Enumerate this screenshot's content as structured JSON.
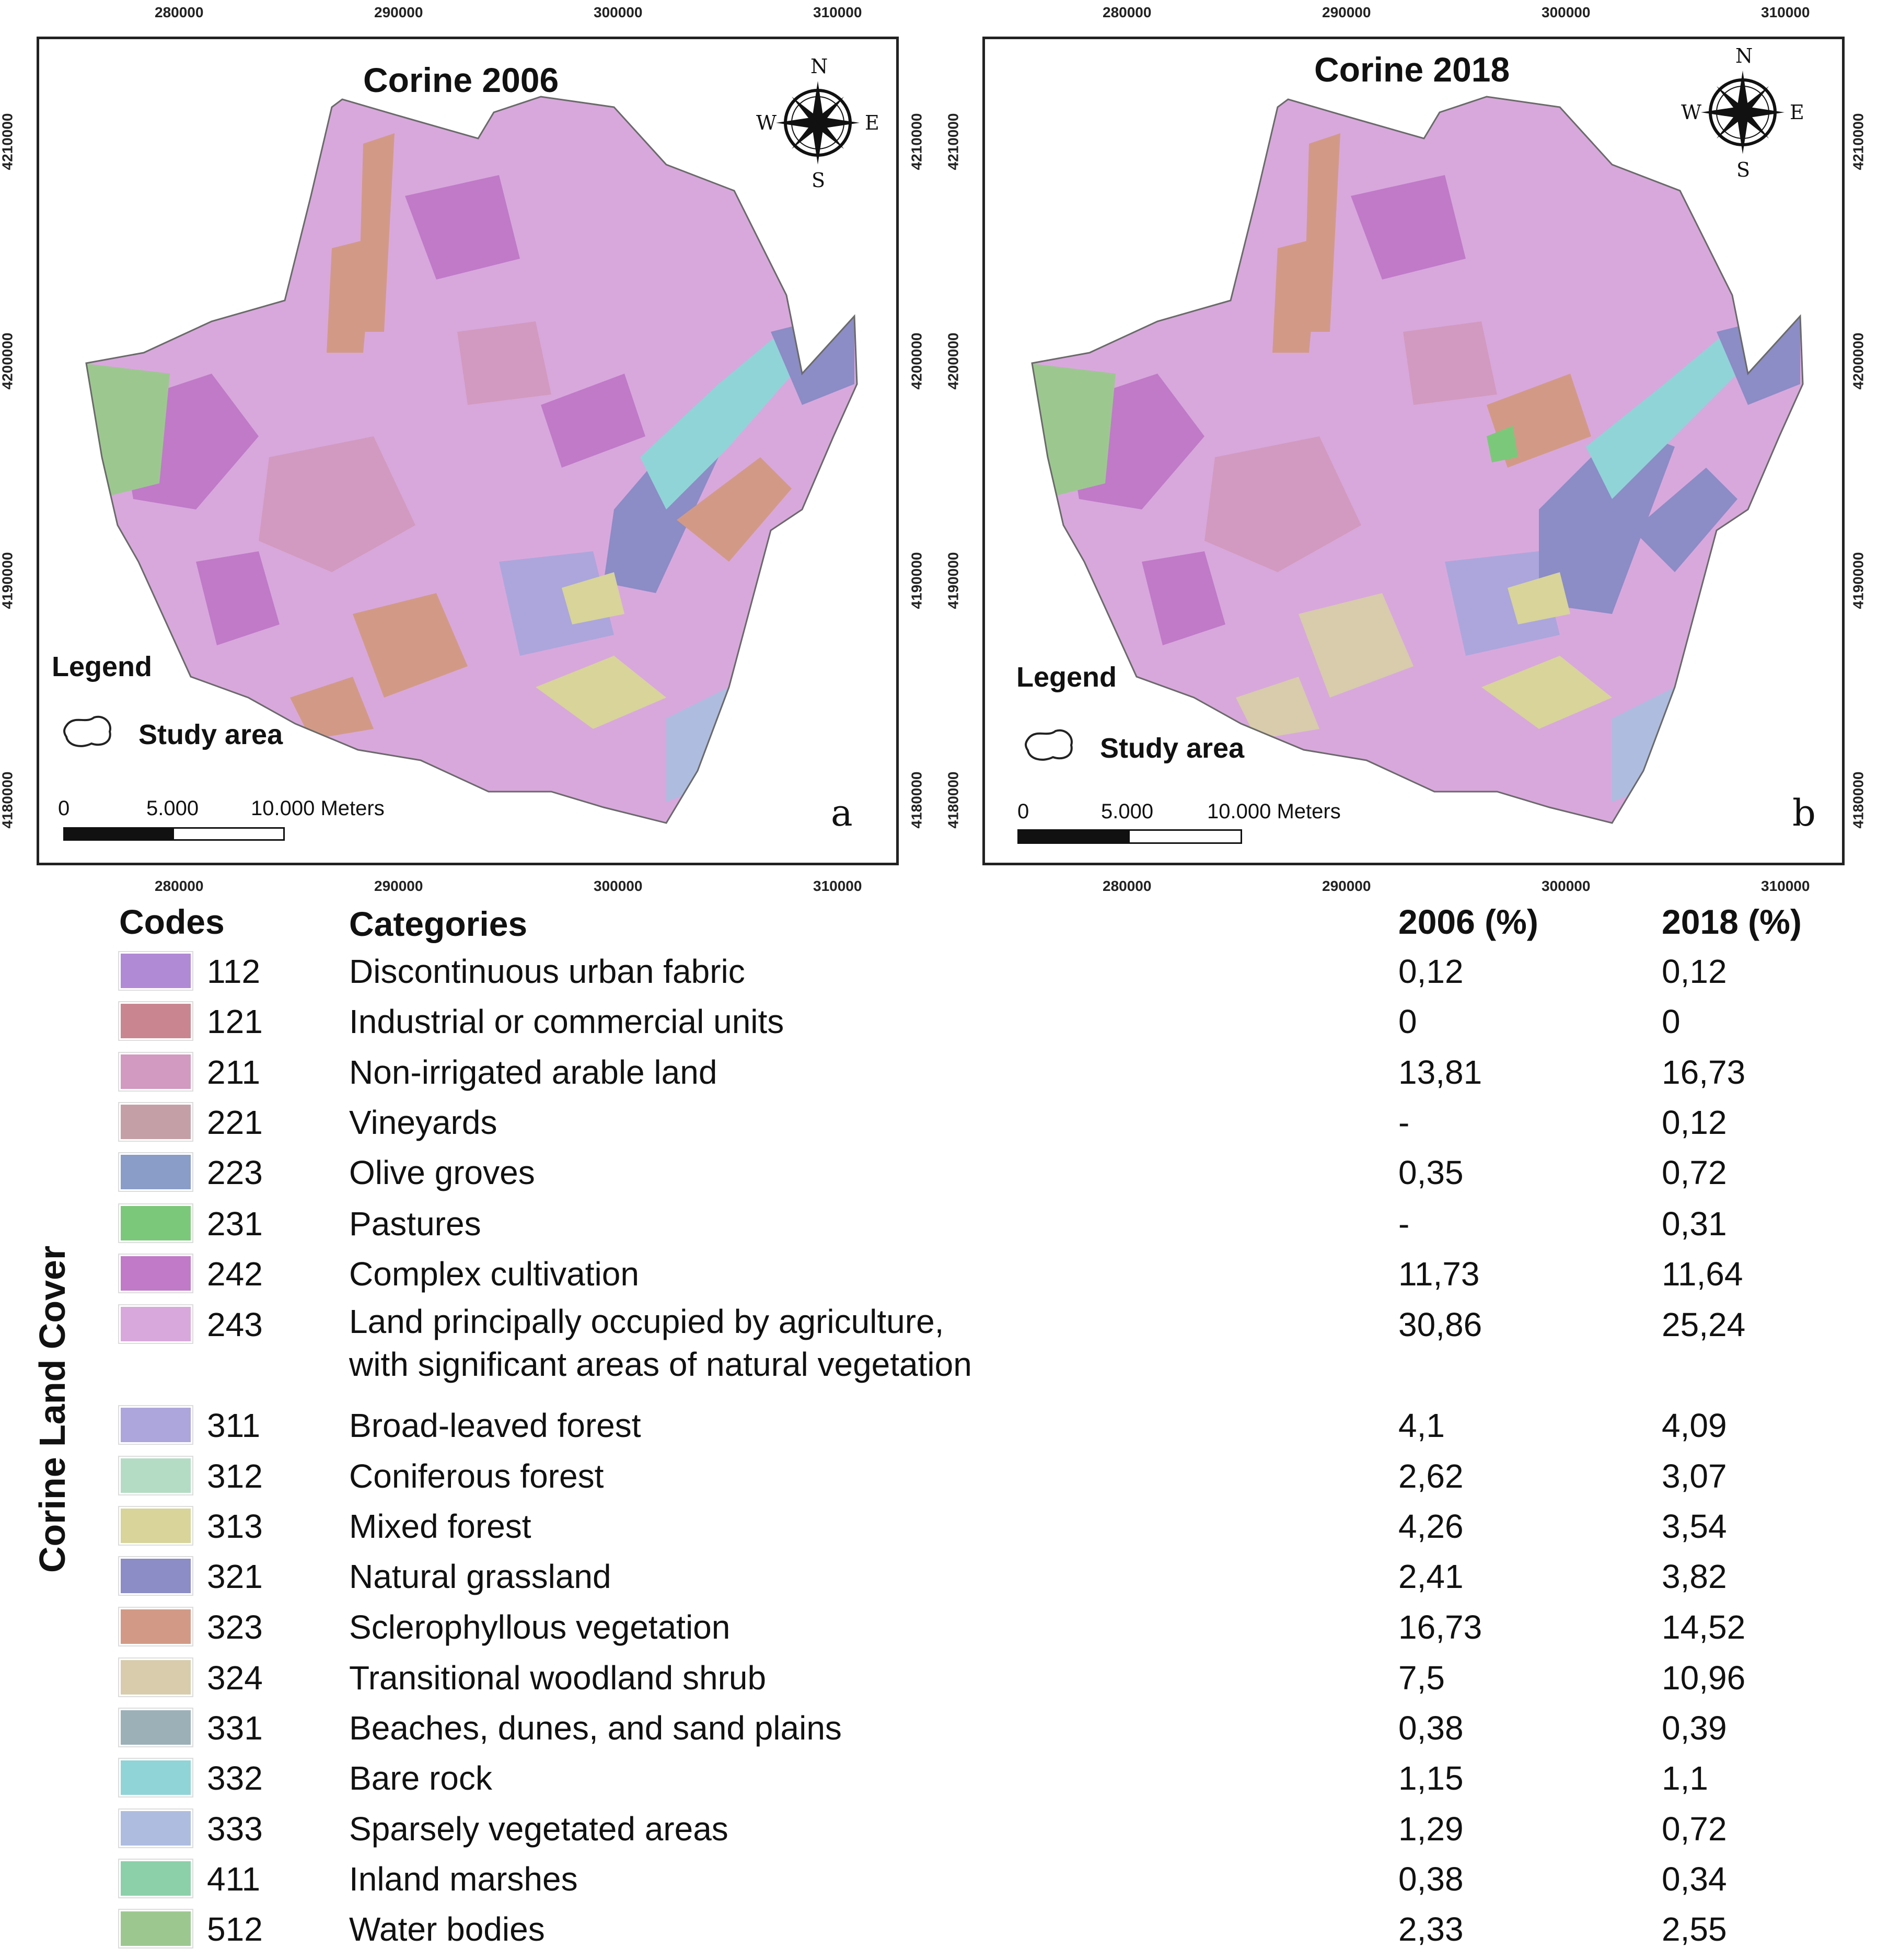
{
  "maps": [
    {
      "title": "Corine 2006",
      "legend_title": "Legend",
      "study_area_label": "Study area",
      "panel_letter": "a",
      "scale": {
        "zero": "0",
        "mid": "5.000",
        "end": "10.000 Meters"
      },
      "compass": {
        "n": "N",
        "s": "S",
        "e": "E",
        "w": "W"
      },
      "x_ticks": [
        "280000",
        "290000",
        "300000",
        "310000"
      ],
      "y_ticks": [
        "4210000",
        "4200000",
        "4190000",
        "4180000"
      ]
    },
    {
      "title": "Corine 2018",
      "legend_title": "Legend",
      "study_area_label": "Study area",
      "panel_letter": "b",
      "scale": {
        "zero": "0",
        "mid": "5.000",
        "end": "10.000 Meters"
      },
      "compass": {
        "n": "N",
        "s": "S",
        "e": "E",
        "w": "W"
      },
      "x_ticks": [
        "280000",
        "290000",
        "300000",
        "310000"
      ],
      "y_ticks": [
        "4210000",
        "4200000",
        "4190000",
        "4180000"
      ]
    }
  ],
  "table": {
    "side_label": "Corine Land Cover",
    "headers": {
      "codes": "Codes",
      "categories": "Categories",
      "y2006": "2006 (%)",
      "y2018": "2018 (%)"
    },
    "rows": [
      {
        "code": "112",
        "category": "Discontinuous urban fabric",
        "v2006": "0,12",
        "v2018": "0,12",
        "color": "#b18ad6"
      },
      {
        "code": "121",
        "category": "Industrial or commercial units",
        "v2006": "0",
        "v2018": "0",
        "color": "#c98690"
      },
      {
        "code": "211",
        "category": "Non-irrigated arable land",
        "v2006": "13,81",
        "v2018": "16,73",
        "color": "#d29ac0"
      },
      {
        "code": "221",
        "category": "Vineyards",
        "v2006": "-",
        "v2018": "0,12",
        "color": "#c4a0a6"
      },
      {
        "code": "223",
        "category": "Olive groves",
        "v2006": "0,35",
        "v2018": "0,72",
        "color": "#8a9cc8"
      },
      {
        "code": "231",
        "category": "Pastures",
        "v2006": "-",
        "v2018": "0,31",
        "color": "#7cc87a"
      },
      {
        "code": "242",
        "category": "Complex cultivation",
        "v2006": "11,73",
        "v2018": "11,64",
        "color": "#c07ac8"
      },
      {
        "code": "243",
        "category": "Land principally occupied by agriculture,",
        "category2": "with significant areas of natural vegetation",
        "v2006": "30,86",
        "v2018": "25,24",
        "color": "#d8a8dc"
      },
      {
        "code": "311",
        "category": "Broad-leaved forest",
        "v2006": "4,1",
        "v2018": "4,09",
        "color": "#aca6dc"
      },
      {
        "code": "312",
        "category": "Coniferous forest",
        "v2006": "2,62",
        "v2018": "3,07",
        "color": "#b4dcc4"
      },
      {
        "code": "313",
        "category": "Mixed forest",
        "v2006": "4,26",
        "v2018": "3,54",
        "color": "#d8d49a"
      },
      {
        "code": "321",
        "category": "Natural grassland",
        "v2006": "2,41",
        "v2018": "3,82",
        "color": "#8c8cc6"
      },
      {
        "code": "323",
        "category": "Sclerophyllous vegetation",
        "v2006": "16,73",
        "v2018": "14,52",
        "color": "#d29a86"
      },
      {
        "code": "324",
        "category": "Transitional woodland shrub",
        "v2006": "7,5",
        "v2018": "10,96",
        "color": "#d8ccac"
      },
      {
        "code": "331",
        "category": "Beaches, dunes, and sand plains",
        "v2006": "0,38",
        "v2018": "0,39",
        "color": "#9cb0b8"
      },
      {
        "code": "332",
        "category": "Bare rock",
        "v2006": "1,15",
        "v2018": "1,1",
        "color": "#90d4d8"
      },
      {
        "code": "333",
        "category": "Sparsely vegetated areas",
        "v2006": "1,29",
        "v2018": "0,72",
        "color": "#aebce0"
      },
      {
        "code": "411",
        "category": "Inland marshes",
        "v2006": "0,38",
        "v2018": "0,34",
        "color": "#8cd0aa"
      },
      {
        "code": "512",
        "category": "Water bodies",
        "v2006": "2,33",
        "v2018": "2,55",
        "color": "#9cc890"
      }
    ]
  }
}
